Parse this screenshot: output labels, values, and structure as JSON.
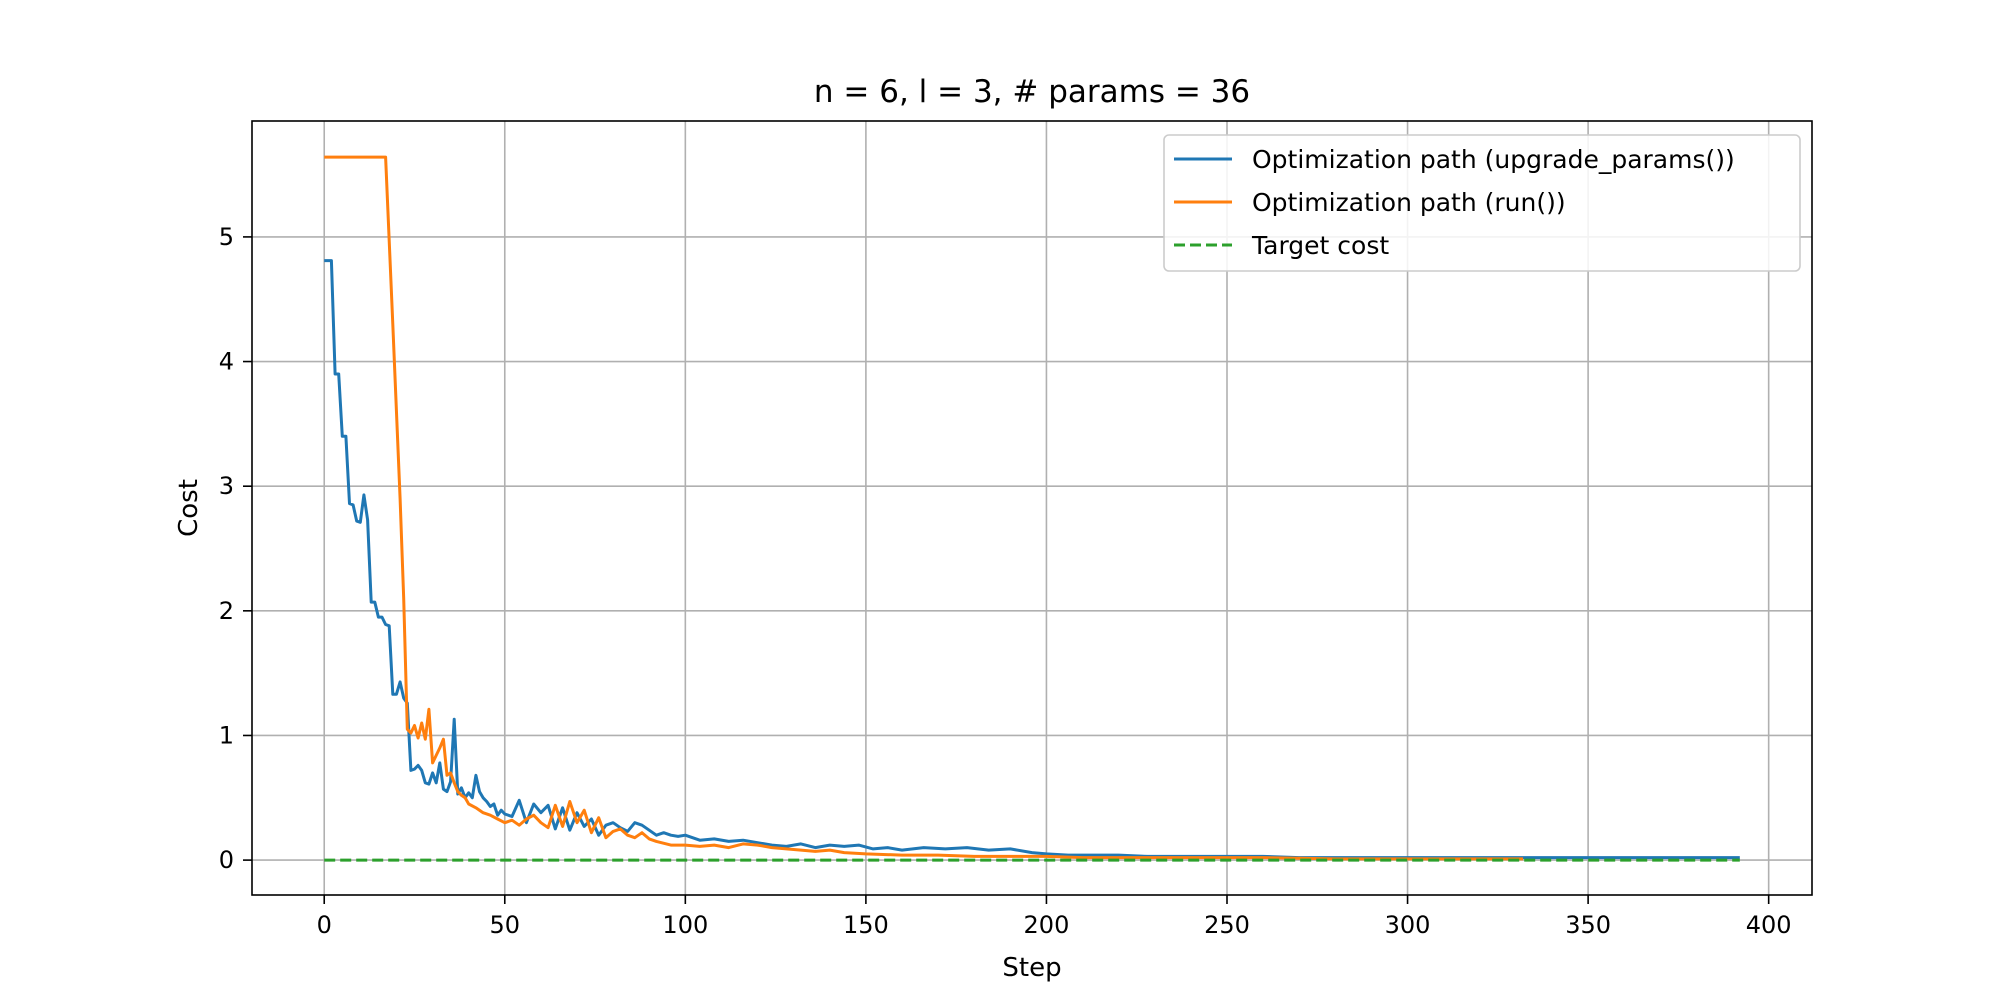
{
  "chart_data": {
    "type": "line",
    "title": "n = 6, l = 3, # params = 36",
    "xlabel": "Step",
    "ylabel": "Cost",
    "xlim": [
      -20,
      412
    ],
    "ylim": [
      -0.28,
      5.93
    ],
    "xticks": [
      0,
      50,
      100,
      150,
      200,
      250,
      300,
      350,
      400
    ],
    "yticks": [
      0,
      1,
      2,
      3,
      4,
      5
    ],
    "grid": true,
    "legend": "top-right",
    "series": [
      {
        "name": "Optimization path (upgrade_params())",
        "color": "#1f77b4",
        "style": "solid",
        "x": [
          0,
          2,
          3,
          4,
          5,
          6,
          7,
          8,
          9,
          10,
          11,
          12,
          13,
          14,
          15,
          16,
          17,
          18,
          19,
          20,
          21,
          22,
          23,
          24,
          25,
          26,
          27,
          28,
          29,
          30,
          31,
          32,
          33,
          34,
          35,
          36,
          37,
          38,
          39,
          40,
          41,
          42,
          43,
          44,
          45,
          46,
          47,
          48,
          49,
          50,
          52,
          54,
          56,
          58,
          60,
          62,
          64,
          66,
          68,
          70,
          72,
          74,
          76,
          78,
          80,
          82,
          84,
          86,
          88,
          90,
          92,
          94,
          96,
          98,
          100,
          104,
          108,
          112,
          116,
          120,
          124,
          128,
          132,
          136,
          140,
          144,
          148,
          152,
          156,
          160,
          166,
          172,
          178,
          184,
          190,
          196,
          200,
          206,
          212,
          220,
          228,
          236,
          244,
          250,
          260,
          270,
          280,
          300,
          320,
          340,
          360,
          380,
          392
        ],
        "values": [
          4.81,
          4.81,
          3.9,
          3.9,
          3.4,
          3.4,
          2.86,
          2.85,
          2.72,
          2.71,
          2.93,
          2.73,
          2.07,
          2.07,
          1.95,
          1.95,
          1.89,
          1.88,
          1.33,
          1.33,
          1.43,
          1.3,
          1.26,
          0.72,
          0.73,
          0.76,
          0.72,
          0.62,
          0.61,
          0.7,
          0.62,
          0.78,
          0.57,
          0.55,
          0.63,
          1.13,
          0.53,
          0.58,
          0.5,
          0.54,
          0.5,
          0.68,
          0.55,
          0.5,
          0.47,
          0.43,
          0.45,
          0.36,
          0.4,
          0.37,
          0.35,
          0.48,
          0.3,
          0.45,
          0.38,
          0.44,
          0.25,
          0.42,
          0.24,
          0.38,
          0.27,
          0.33,
          0.2,
          0.28,
          0.3,
          0.26,
          0.23,
          0.3,
          0.28,
          0.24,
          0.2,
          0.22,
          0.2,
          0.19,
          0.2,
          0.16,
          0.17,
          0.15,
          0.16,
          0.14,
          0.12,
          0.11,
          0.13,
          0.1,
          0.12,
          0.11,
          0.12,
          0.09,
          0.1,
          0.08,
          0.1,
          0.09,
          0.1,
          0.08,
          0.09,
          0.06,
          0.05,
          0.04,
          0.04,
          0.04,
          0.03,
          0.03,
          0.03,
          0.03,
          0.03,
          0.02,
          0.02,
          0.02,
          0.02,
          0.02,
          0.02,
          0.02,
          0.02
        ]
      },
      {
        "name": "Optimization path (run())",
        "color": "#ff7f0e",
        "style": "solid",
        "x": [
          0,
          17,
          19,
          21,
          22,
          23,
          24,
          25,
          26,
          27,
          28,
          29,
          30,
          31,
          32,
          33,
          34,
          35,
          36,
          37,
          38,
          39,
          40,
          42,
          44,
          46,
          48,
          50,
          52,
          54,
          56,
          58,
          60,
          62,
          64,
          66,
          68,
          70,
          72,
          74,
          76,
          78,
          80,
          82,
          84,
          86,
          88,
          90,
          92,
          96,
          100,
          104,
          108,
          112,
          116,
          120,
          124,
          128,
          132,
          136,
          140,
          144,
          150,
          160,
          170,
          180,
          190,
          200,
          210,
          220,
          240,
          260,
          280,
          300,
          320,
          332
        ],
        "values": [
          5.64,
          5.64,
          4.3,
          2.9,
          2.1,
          1.05,
          1.02,
          1.08,
          0.98,
          1.1,
          0.97,
          1.21,
          0.78,
          0.84,
          0.9,
          0.97,
          0.68,
          0.7,
          0.62,
          0.55,
          0.52,
          0.5,
          0.45,
          0.42,
          0.38,
          0.36,
          0.33,
          0.3,
          0.32,
          0.28,
          0.33,
          0.36,
          0.3,
          0.26,
          0.44,
          0.27,
          0.47,
          0.3,
          0.4,
          0.22,
          0.34,
          0.18,
          0.23,
          0.25,
          0.2,
          0.18,
          0.22,
          0.17,
          0.15,
          0.12,
          0.12,
          0.11,
          0.12,
          0.1,
          0.13,
          0.12,
          0.1,
          0.09,
          0.08,
          0.07,
          0.08,
          0.06,
          0.05,
          0.04,
          0.04,
          0.03,
          0.03,
          0.03,
          0.02,
          0.02,
          0.02,
          0.02,
          0.01,
          0.01,
          0.01,
          0.01
        ]
      },
      {
        "name": "Target cost",
        "color": "#2ca02c",
        "style": "dashed",
        "x": [
          0,
          392
        ],
        "values": [
          0,
          0
        ]
      }
    ]
  }
}
